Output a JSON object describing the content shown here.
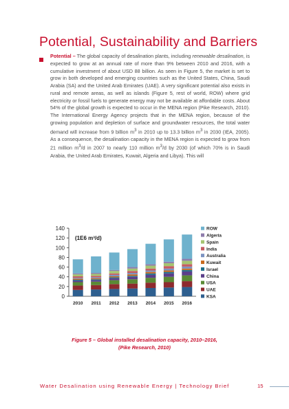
{
  "section_title": "Potential, Sustainability and Barriers",
  "paragraph": {
    "lead": "Potential –",
    "part1": " The global capacity of desalination plants, including ",
    "em1": "renewable desalination",
    "part2": ", is expected to grow at an annual rate of more than 9% between 2010 and 2016, with a cumulative investment of about USD 88 billion. As seen in Figure 5, the market is set to grow in both developed and emerging countries such as the United States, China, Saudi Arabia (SA) and the United Arab Emirates (UAE). A very significant potential also exists in rural and remote areas, as well as islands (Figure 5, rest of world, ROW) where grid electricity or fossil fuels to generate energy may not be available at affordable costs. About 54% of the global growth is expected to occur in the MENA region (Pike Research, 2010). The International Energy Agency projects that in the MENA region, because of the growing population and depletion of surface and groundwater resources, the total water demand will increase from 9 billion m",
    "sup1": "3",
    "part3": " in 2010 up to 13.3 billion m",
    "sup2": "3",
    "part4": " in 2030 (IEA, 2005). As a consequence, the desalination capacity in the MENA region is expected to grow from 21 million m",
    "sup3": "3",
    "part5": "/d in 2007 to nearly 110 million m",
    "sup4": "3",
    "part6": "/d by 2030 (of which 70% is in Saudi Arabia, the United Arab Emirates, Kuwait, Algeria and Libya). This will"
  },
  "chart_data": {
    "type": "bar",
    "stacked": true,
    "unit_label": "(1E6 m³/d)",
    "categories": [
      "2010",
      "2011",
      "2012",
      "2013",
      "2014",
      "2015",
      "2016"
    ],
    "ylim": [
      0,
      140
    ],
    "yticks": [
      0,
      20,
      40,
      60,
      80,
      100,
      120,
      140
    ],
    "grid": false,
    "legend_position": "right",
    "series": [
      {
        "name": "KSA",
        "color": "#2e5f8f",
        "values": [
          13,
          14,
          15,
          16,
          17,
          18,
          19
        ]
      },
      {
        "name": "UAE",
        "color": "#8e2a2e",
        "values": [
          9,
          9,
          10,
          10,
          11,
          11,
          12
        ]
      },
      {
        "name": "USA",
        "color": "#5a8a35",
        "values": [
          7,
          7,
          8,
          9,
          10,
          11,
          12
        ]
      },
      {
        "name": "China",
        "color": "#5b3f8a",
        "values": [
          3,
          3,
          4,
          5,
          6,
          7,
          8
        ]
      },
      {
        "name": "Israel",
        "color": "#1f6f8b",
        "values": [
          2,
          2,
          2,
          2,
          3,
          3,
          3
        ]
      },
      {
        "name": "Kuwait",
        "color": "#c96a1e",
        "values": [
          2,
          2,
          2,
          3,
          3,
          3,
          3
        ]
      },
      {
        "name": "Australia",
        "color": "#7b93c1",
        "values": [
          2,
          2,
          3,
          3,
          3,
          4,
          4
        ]
      },
      {
        "name": "India",
        "color": "#c45c63",
        "values": [
          3,
          3,
          3,
          4,
          4,
          5,
          5
        ]
      },
      {
        "name": "Spain",
        "color": "#a5c470",
        "values": [
          4,
          4,
          5,
          5,
          6,
          6,
          7
        ]
      },
      {
        "name": "Algeria",
        "color": "#8d7cab",
        "values": [
          2,
          2,
          2,
          3,
          3,
          3,
          4
        ]
      },
      {
        "name": "ROW",
        "color": "#6fb2cd",
        "values": [
          29,
          34,
          36,
          37,
          42,
          46,
          50
        ]
      }
    ]
  },
  "figure_caption_line1": "Figure 5 – Global installed desalination capacity, 2010–2016,",
  "figure_caption_line2": "(Pike Research, 2010)",
  "footer_text": "Water Desalination using Renewable Energy | Technology Brief",
  "page_number": "15"
}
